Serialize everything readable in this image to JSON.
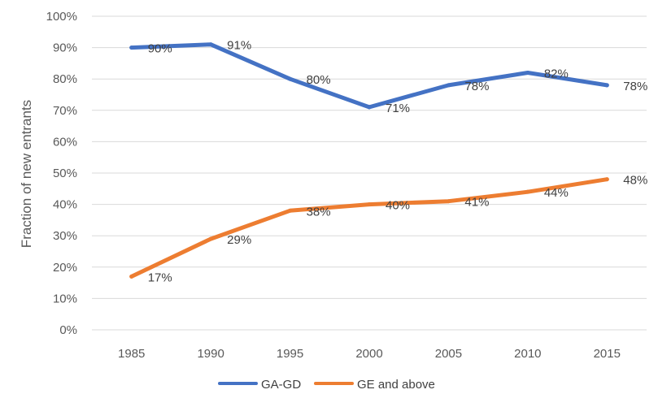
{
  "chart_data": {
    "type": "line",
    "title": "",
    "xlabel": "",
    "ylabel": "Fraction of new entrants",
    "categories": [
      "1985",
      "1990",
      "1995",
      "2000",
      "2005",
      "2010",
      "2015"
    ],
    "ylim": [
      0,
      100
    ],
    "ytick_step": 10,
    "ytick_suffix": "%",
    "grid": true,
    "legend_position": "bottom",
    "series": [
      {
        "name": "GA-GD",
        "color": "#4472C4",
        "values": [
          90,
          91,
          80,
          71,
          78,
          82,
          78
        ],
        "labels": [
          "90%",
          "91%",
          "80%",
          "71%",
          "78%",
          "82%",
          "78%"
        ]
      },
      {
        "name": "GE and above",
        "color": "#ED7D31",
        "values": [
          17,
          29,
          38,
          40,
          41,
          44,
          48
        ],
        "labels": [
          "17%",
          "29%",
          "38%",
          "40%",
          "41%",
          "44%",
          "48%"
        ]
      }
    ]
  }
}
